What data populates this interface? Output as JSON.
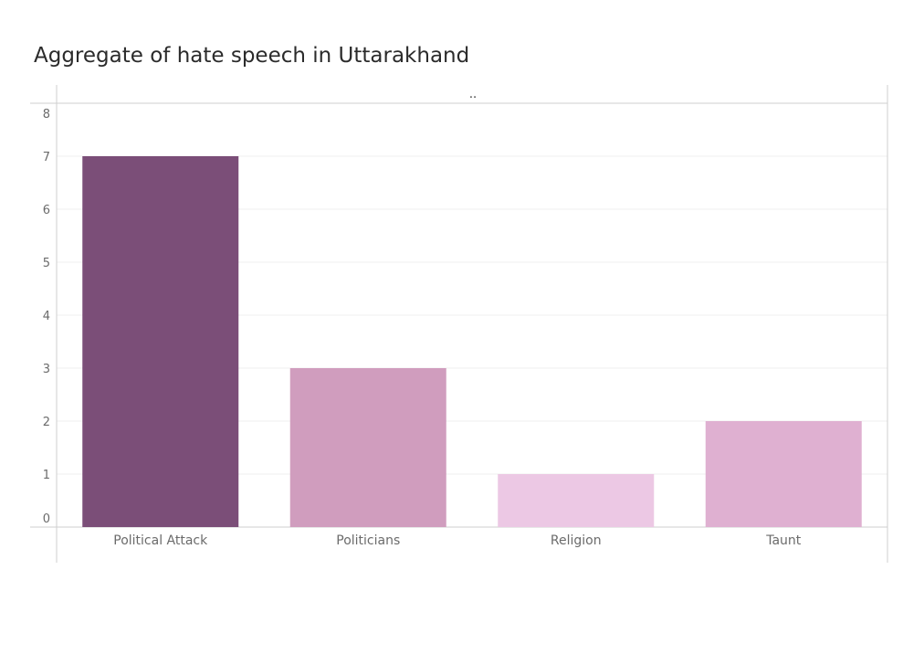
{
  "chart_data": {
    "type": "bar",
    "title": "Aggregate of hate speech in Uttarakhand",
    "column_header": "..",
    "categories": [
      "Political Attack",
      "Politicians",
      "Religion",
      "Taunt"
    ],
    "values": [
      7,
      3,
      1,
      2
    ],
    "colors": [
      "#7b4e78",
      "#d09dbe",
      "#ecc8e4",
      "#dfb0d1"
    ],
    "xlabel": "",
    "ylabel": "",
    "ylim": [
      0,
      8
    ],
    "yticks": [
      0,
      1,
      2,
      3,
      4,
      5,
      6,
      7,
      8
    ],
    "grid": true,
    "legend": "none"
  }
}
